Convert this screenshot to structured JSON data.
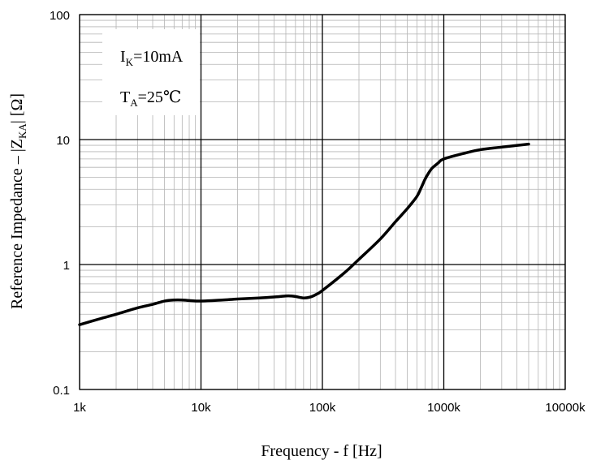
{
  "chart_data": {
    "type": "line",
    "title": "",
    "xlabel": "Frequency - f [Hz]",
    "ylabel": "Reference Impedance – |Z",
    "ylabel_sub": "KA",
    "ylabel_unit": "| [Ω]",
    "x_scale": "log",
    "y_scale": "log",
    "xlim": [
      1000,
      10000000
    ],
    "ylim": [
      0.1,
      100
    ],
    "x_ticks": [
      1000,
      10000,
      100000,
      1000000,
      10000000
    ],
    "x_tick_labels": [
      "1k",
      "10k",
      "100k",
      "1000k",
      "10000k"
    ],
    "y_ticks": [
      0.1,
      1,
      10,
      100
    ],
    "y_tick_labels": [
      "0.1",
      "1",
      "10",
      "100"
    ],
    "grid": true,
    "annotations": [
      {
        "main": "I",
        "sub": "K",
        "rest": "=10mA"
      },
      {
        "main": "T",
        "sub": "A",
        "rest": "=25℃"
      }
    ],
    "series": [
      {
        "color": "#000000",
        "x": [
          1000,
          1500,
          2000,
          3000,
          4000,
          5000,
          6000,
          7000,
          8000,
          10000,
          15000,
          20000,
          30000,
          40000,
          50000,
          55000,
          60000,
          70000,
          80000,
          90000,
          100000,
          150000,
          200000,
          300000,
          400000,
          500000,
          600000,
          650000,
          700000,
          750000,
          800000,
          900000,
          1000000,
          1500000,
          2000000,
          3000000,
          5000000
        ],
        "y": [
          0.33,
          0.37,
          0.4,
          0.45,
          0.48,
          0.51,
          0.52,
          0.52,
          0.515,
          0.51,
          0.52,
          0.53,
          0.54,
          0.55,
          0.56,
          0.56,
          0.555,
          0.54,
          0.55,
          0.58,
          0.62,
          0.85,
          1.1,
          1.6,
          2.2,
          2.8,
          3.5,
          4.1,
          4.8,
          5.4,
          5.9,
          6.5,
          7.0,
          7.8,
          8.3,
          8.7,
          9.2
        ]
      }
    ]
  }
}
